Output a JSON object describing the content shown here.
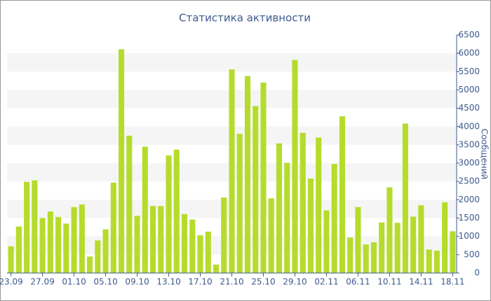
{
  "chart_data": {
    "type": "bar",
    "title": "Статистика активности",
    "y_label": "Сообщений",
    "color": "#b5dc2c",
    "categories": [
      "23.09",
      null,
      null,
      null,
      "27.09",
      null,
      null,
      null,
      "01.10",
      null,
      null,
      null,
      "05.10",
      null,
      null,
      null,
      "09.10",
      null,
      null,
      null,
      "13.10",
      null,
      null,
      null,
      "17.10",
      null,
      null,
      null,
      "21.10",
      null,
      null,
      null,
      "25.10",
      null,
      null,
      null,
      "29.10",
      null,
      null,
      null,
      "02.11",
      null,
      null,
      null,
      "06.11",
      null,
      null,
      null,
      "10.11",
      null,
      null,
      null,
      "14.11",
      null,
      null,
      null,
      "18.11"
    ],
    "values": [
      730,
      1270,
      2490,
      2530,
      1500,
      1680,
      1530,
      1350,
      1800,
      1870,
      450,
      890,
      1190,
      2470,
      6110,
      3750,
      1560,
      3450,
      1830,
      1830,
      3210,
      3370,
      1610,
      1460,
      1030,
      1130,
      230,
      2060,
      5560,
      3800,
      5380,
      4560,
      5200,
      2040,
      3540,
      3010,
      5820,
      3830,
      2580,
      3700,
      1710,
      2980,
      4280,
      970,
      1800,
      780,
      840,
      1380,
      2340,
      1370,
      4080,
      1540,
      1850,
      640,
      610,
      1930,
      1140
    ],
    "ylim": [
      0,
      6500
    ],
    "yticks": [
      0,
      500,
      1000,
      1500,
      2000,
      2500,
      3000,
      3500,
      4000,
      4500,
      5000,
      5500,
      6000,
      6500
    ],
    "grid": "bands"
  }
}
